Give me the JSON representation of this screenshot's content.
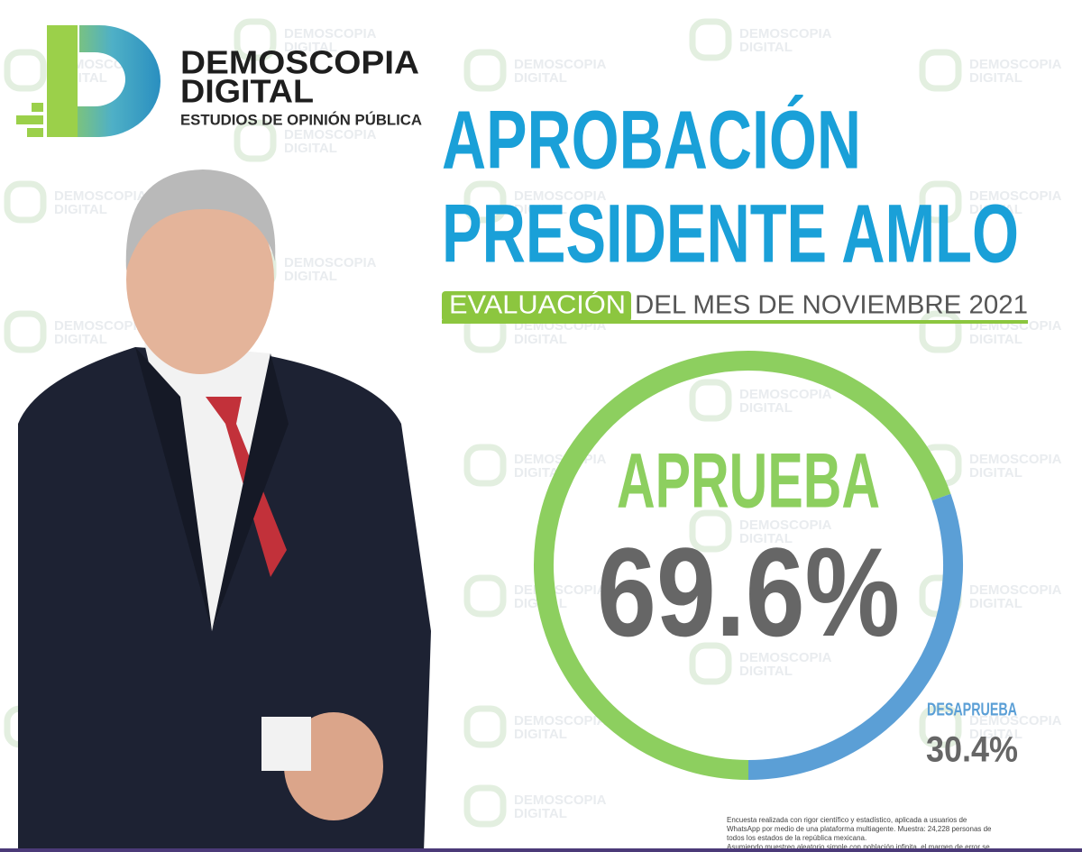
{
  "chart_data": {
    "type": "donut",
    "brand": {
      "name": "DEMOSCOPIA",
      "name2": "DIGITAL",
      "tagline": "ESTUDIOS DE OPINIÓN PÚBLICA"
    },
    "title": [
      "APROBACIÓN",
      "PRESIDENTE AMLO"
    ],
    "subtitle": {
      "highlight": "EVALUACIÓN",
      "rest": "DEL MES DE NOVIEMBRE 2021"
    },
    "categories": [
      "APRUEBA",
      "DESAPRUEBA"
    ],
    "values": [
      69.6,
      30.4
    ],
    "value_labels": [
      "69.6%",
      "30.4%"
    ],
    "colors": [
      "#8dcf5f",
      "#5b9fd6"
    ],
    "footnote": [
      "Encuesta realizada con rigor científico y estadístico, aplicada a usuarios de",
      "WhatsApp por medio de una plataforma multiagente. Muestra: 24,228 personas de",
      "todos los estados de la república mexicana.",
      "Asumiendo muestreo aleatorio simple con población infinita, el margen de error se"
    ]
  }
}
